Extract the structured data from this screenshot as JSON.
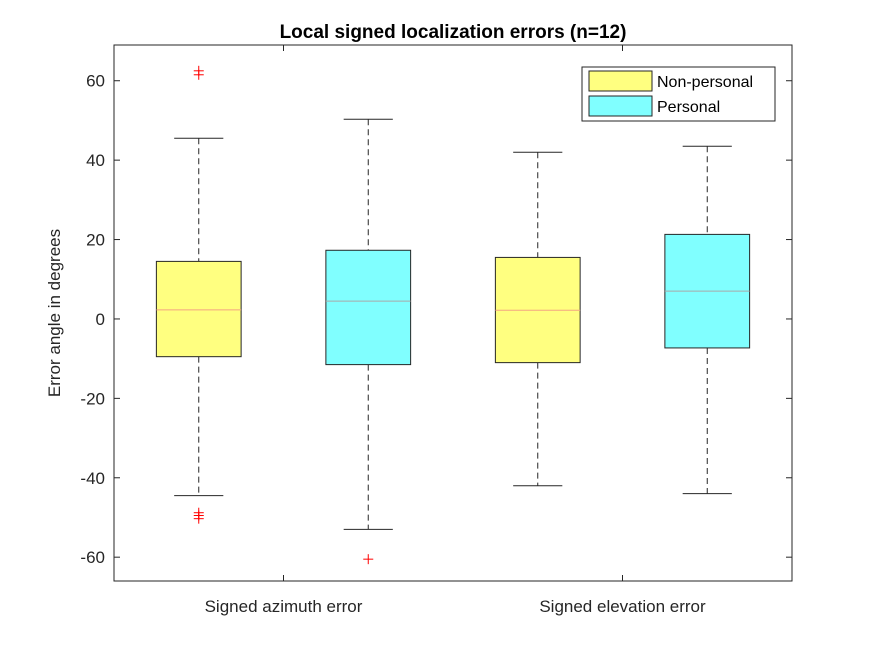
{
  "chart_data": {
    "type": "box",
    "title": "Local signed localization errors (n=12)",
    "ylabel": "Error angle in degrees",
    "xlabel": "",
    "ylim": [
      -66,
      69
    ],
    "yticks": [
      60,
      40,
      20,
      0,
      -20,
      -40,
      -60
    ],
    "ytick_labels": [
      "60",
      "40",
      "20",
      "0",
      "-20",
      "-40",
      "-60"
    ],
    "categories": [
      "Signed azimuth error",
      "Signed elevation error"
    ],
    "legend": {
      "position": "top-right",
      "entries": [
        {
          "name": "Non-personal",
          "color": "#ffff80"
        },
        {
          "name": "Personal",
          "color": "#80ffff"
        }
      ]
    },
    "boxes": [
      {
        "category": "Signed azimuth error",
        "series": "Non-personal",
        "color": "#ffff80",
        "median_color": "#f4a582",
        "whisker_low": -44.5,
        "q1": -9.5,
        "median": 2.3,
        "q3": 14.5,
        "whisker_high": 45.5,
        "outliers": [
          62.5,
          61.5,
          -48.8,
          -49.5,
          -50.3
        ]
      },
      {
        "category": "Signed azimuth error",
        "series": "Personal",
        "color": "#80ffff",
        "median_color": "#a9a9a9",
        "whisker_low": -53.0,
        "q1": -11.5,
        "median": 4.5,
        "q3": 17.3,
        "whisker_high": 50.3,
        "outliers": [
          -60.5
        ]
      },
      {
        "category": "Signed elevation error",
        "series": "Non-personal",
        "color": "#ffff80",
        "median_color": "#f4a582",
        "whisker_low": -42.0,
        "q1": -11.0,
        "median": 2.2,
        "q3": 15.5,
        "whisker_high": 42.0,
        "outliers": []
      },
      {
        "category": "Signed elevation error",
        "series": "Personal",
        "color": "#80ffff",
        "median_color": "#a9a9a9",
        "whisker_low": -44.0,
        "q1": -7.3,
        "median": 7.0,
        "q3": 21.3,
        "whisker_high": 43.5,
        "outliers": []
      }
    ]
  }
}
